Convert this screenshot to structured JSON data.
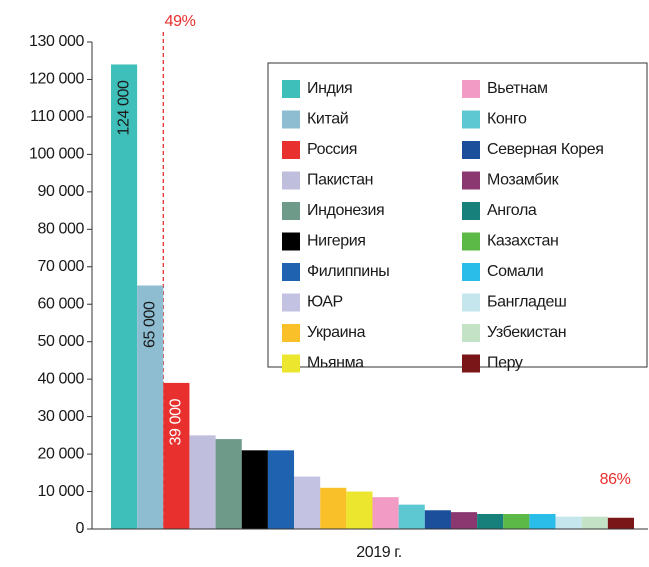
{
  "chart_data": {
    "type": "bar",
    "categories": [
      "2019 г."
    ],
    "xlabel": "2019 г.",
    "annotations": [
      "49%",
      "86%"
    ],
    "ylim": [
      0,
      130000
    ],
    "yticks": [
      {
        "value": 0,
        "label": "0"
      },
      {
        "value": 10000,
        "label": "10 000"
      },
      {
        "value": 20000,
        "label": "20 000"
      },
      {
        "value": 30000,
        "label": "30 000"
      },
      {
        "value": 40000,
        "label": "40 000"
      },
      {
        "value": 50000,
        "label": "50 000"
      },
      {
        "value": 60000,
        "label": "60 000"
      },
      {
        "value": 70000,
        "label": "70 000"
      },
      {
        "value": 80000,
        "label": "80 000"
      },
      {
        "value": 90000,
        "label": "90 000"
      },
      {
        "value": 100000,
        "label": "100 000"
      },
      {
        "value": 110000,
        "label": "110 000"
      },
      {
        "value": 120000,
        "label": "120 000"
      },
      {
        "value": 130000,
        "label": "130 000"
      }
    ],
    "legend": "upper right",
    "series": [
      {
        "name": "Индия",
        "color": "#3fbfb9",
        "values": [
          124000
        ],
        "value_labels": [
          "124 000"
        ]
      },
      {
        "name": "Китай",
        "color": "#8ebdd2",
        "values": [
          65000
        ],
        "value_labels": [
          "65 000"
        ]
      },
      {
        "name": "Россия",
        "color": "#e8302e",
        "values": [
          39000
        ],
        "value_labels": [
          "39 000"
        ]
      },
      {
        "name": "Пакистан",
        "color": "#bfbedd",
        "values": [
          25000
        ]
      },
      {
        "name": "Индонезия",
        "color": "#6e9a8a",
        "values": [
          24000
        ]
      },
      {
        "name": "Нигерия",
        "color": "#000000",
        "values": [
          21000
        ]
      },
      {
        "name": "Филиппины",
        "color": "#1f62b0",
        "values": [
          21000
        ]
      },
      {
        "name": "ЮАР",
        "color": "#c3c2e2",
        "values": [
          14000
        ]
      },
      {
        "name": "Украина",
        "color": "#f9c02a",
        "values": [
          11000
        ]
      },
      {
        "name": "Мьянма",
        "color": "#ece62e",
        "values": [
          10000
        ]
      },
      {
        "name": "Вьетнам",
        "color": "#f29bc4",
        "values": [
          8500
        ]
      },
      {
        "name": "Конго",
        "color": "#5ec8d2",
        "values": [
          6500
        ]
      },
      {
        "name": "Северная Корея",
        "color": "#1b4f9c",
        "values": [
          5000
        ]
      },
      {
        "name": "Мозамбик",
        "color": "#8b3770",
        "values": [
          4500
        ]
      },
      {
        "name": "Ангола",
        "color": "#17807a",
        "values": [
          4000
        ]
      },
      {
        "name": "Казахстан",
        "color": "#5db947",
        "values": [
          4000
        ]
      },
      {
        "name": "Сомали",
        "color": "#2abdea",
        "values": [
          4000
        ]
      },
      {
        "name": "Бангладеш",
        "color": "#c6e6ee",
        "values": [
          3300
        ]
      },
      {
        "name": "Узбекистан",
        "color": "#c3e2c6",
        "values": [
          3300
        ]
      },
      {
        "name": "Перу",
        "color": "#7a1518",
        "values": [
          3000
        ]
      }
    ]
  }
}
